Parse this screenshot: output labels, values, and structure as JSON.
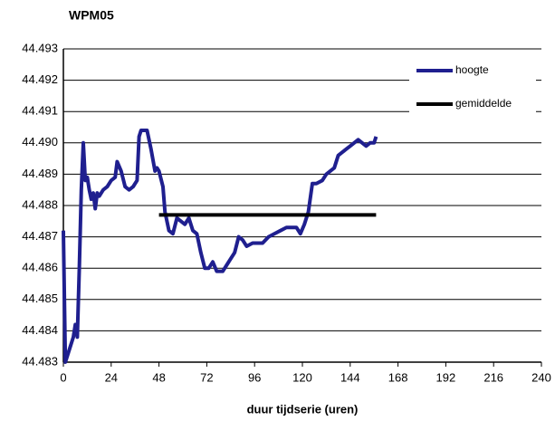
{
  "chart_data": {
    "type": "line",
    "title": "WPM05",
    "xlabel": "duur tijdserie (uren)",
    "xlim": [
      0,
      240
    ],
    "xticks": [
      0,
      24,
      48,
      72,
      96,
      120,
      144,
      168,
      192,
      216,
      240
    ],
    "ylim": [
      44.483,
      44.493
    ],
    "yticks": [
      44.483,
      44.484,
      44.485,
      44.486,
      44.487,
      44.488,
      44.489,
      {
        "value": 44.49,
        "label": "44.490"
      },
      44.491,
      44.492,
      44.493
    ],
    "grid": true,
    "legend": "upper right",
    "series": [
      {
        "name": "hoogte",
        "color": "#1f1f8f",
        "x": [
          0,
          1,
          5,
          6,
          7,
          8,
          9,
          10,
          11,
          12,
          13,
          14,
          15,
          16,
          17,
          18,
          20,
          22,
          24,
          26,
          27,
          29,
          31,
          33,
          35,
          37,
          38,
          39,
          42,
          44,
          46,
          47,
          48,
          50,
          51,
          53,
          55,
          57,
          59,
          61,
          63,
          65,
          67,
          69,
          71,
          73,
          75,
          77,
          80,
          82,
          84,
          86,
          88,
          90,
          92,
          95,
          98,
          100,
          103,
          106,
          109,
          112,
          117,
          119,
          121,
          123,
          125,
          127,
          130,
          132,
          134,
          136,
          138,
          140,
          142,
          144,
          146,
          148,
          150,
          152,
          154,
          156,
          157
        ],
        "values": [
          44.4872,
          44.483,
          44.4838,
          44.4842,
          44.4838,
          44.486,
          44.4885,
          44.49,
          44.4888,
          44.4889,
          44.4885,
          44.4882,
          44.4884,
          44.4879,
          44.4884,
          44.4883,
          44.4885,
          44.4886,
          44.4888,
          44.4889,
          44.4894,
          44.4891,
          44.4886,
          44.4885,
          44.4886,
          44.4888,
          44.4902,
          44.4904,
          44.4904,
          44.4898,
          44.4891,
          44.4892,
          44.4891,
          44.4886,
          44.4878,
          44.4872,
          44.4871,
          44.4876,
          44.4875,
          44.4874,
          44.4876,
          44.4872,
          44.4871,
          44.4865,
          44.486,
          44.486,
          44.4862,
          44.4859,
          44.4859,
          44.4861,
          44.4863,
          44.4865,
          44.487,
          44.4869,
          44.4867,
          44.4868,
          44.4868,
          44.4868,
          44.487,
          44.4871,
          44.4872,
          44.4873,
          44.4873,
          44.4871,
          44.4874,
          44.4878,
          44.4887,
          44.4887,
          44.4888,
          44.489,
          44.4891,
          44.4892,
          44.4896,
          44.4897,
          44.4898,
          44.4899,
          44.49,
          44.4901,
          44.49,
          44.4899,
          44.49,
          44.49,
          44.4902
        ]
      },
      {
        "name": "gemiddelde",
        "color": "#000000",
        "x": [
          48,
          157
        ],
        "values": [
          44.4877,
          44.4877
        ]
      }
    ]
  }
}
